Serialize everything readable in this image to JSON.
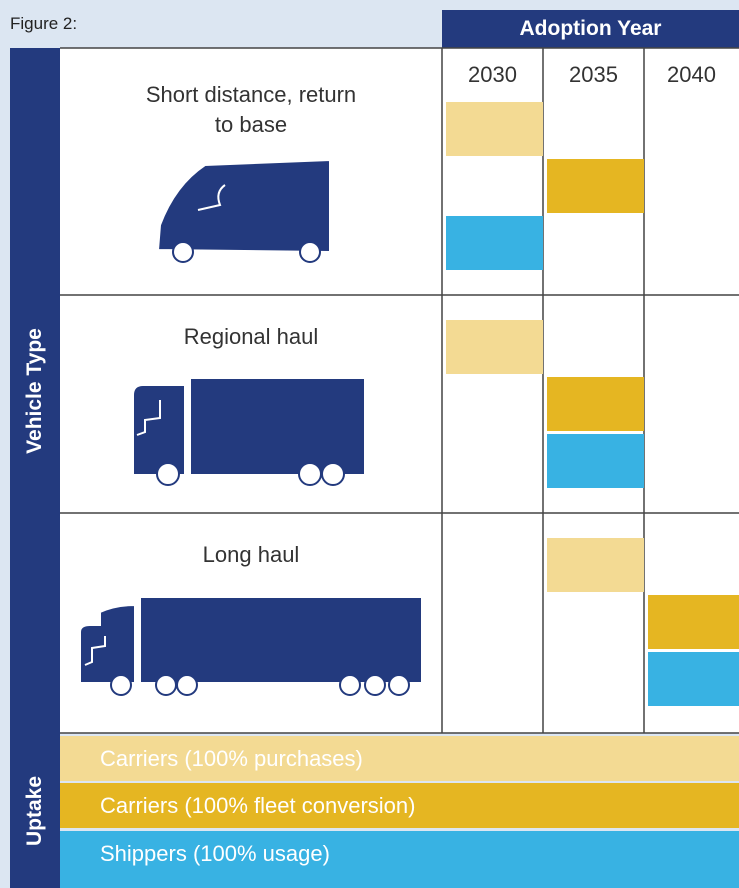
{
  "header": {
    "figure_label": "Figure 2:",
    "column_title": "Adoption Year"
  },
  "row_header": "Vehicle Type",
  "years": [
    2030,
    2035,
    2040
  ],
  "rows": [
    {
      "label": "Short distance, return to base",
      "adoption": [
        2030,
        2035,
        2030
      ]
    },
    {
      "label": "Regional haul",
      "adoption": [
        2030,
        2035,
        2035
      ]
    },
    {
      "label": "Long haul",
      "adoption": [
        2035,
        2040,
        2040
      ]
    }
  ],
  "uptake": {
    "title": "Uptake",
    "items": [
      {
        "label": "Carriers (100% purchases)",
        "color": "#f3da93"
      },
      {
        "label": "Carriers (100% fleet conversion)",
        "color": "#e5b622"
      },
      {
        "label": "Shippers (100% usage)",
        "color": "#38b2e3"
      }
    ]
  }
}
